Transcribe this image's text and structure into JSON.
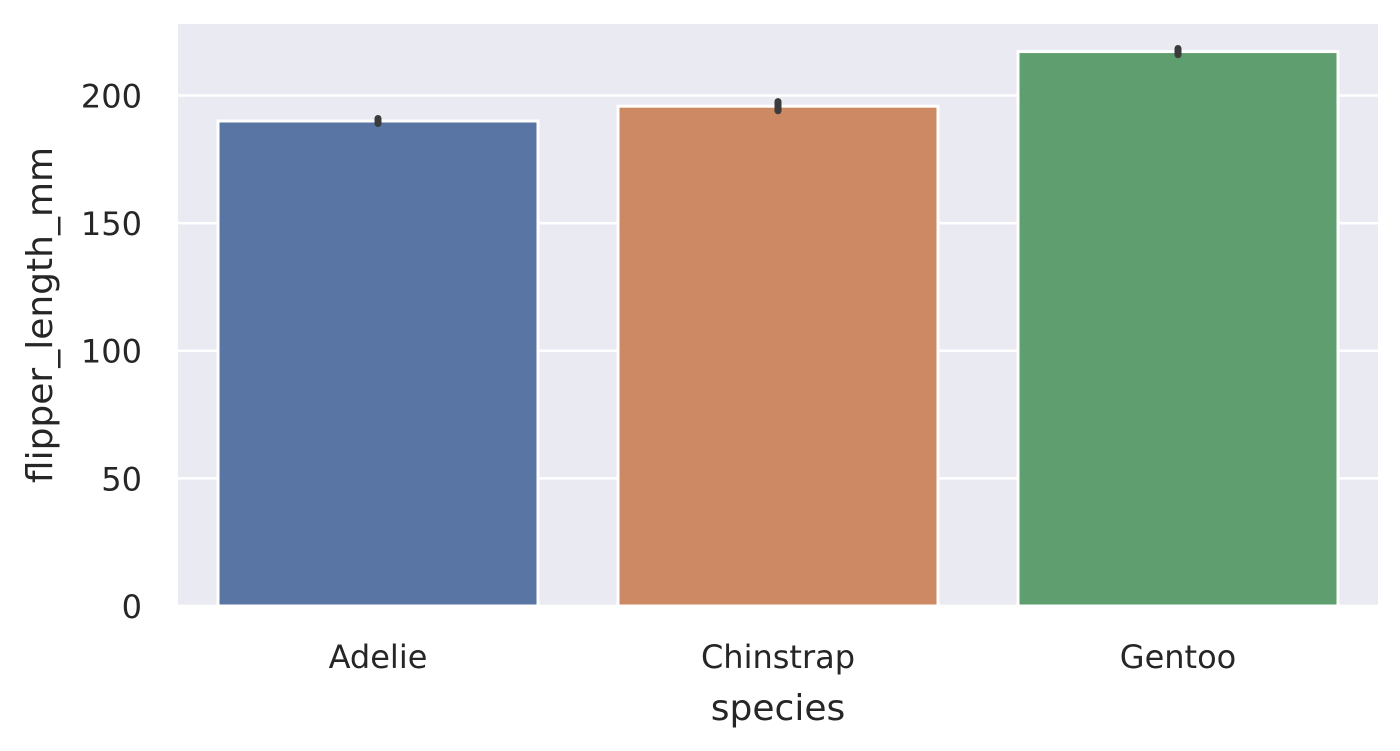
{
  "chart_data": {
    "type": "bar",
    "categories": [
      "Adelie",
      "Chinstrap",
      "Gentoo"
    ],
    "values": [
      190.0,
      195.8,
      217.2
    ],
    "errors": [
      [
        189.0,
        191.0
      ],
      [
        194.0,
        197.6
      ],
      [
        216.0,
        218.4
      ]
    ],
    "colors": [
      "#5875a4",
      "#cc8963",
      "#5f9e6e"
    ],
    "xlabel": "species",
    "ylabel": "flipper_length_mm",
    "ylim": [
      0,
      228
    ],
    "yticks": [
      0,
      50,
      100,
      150,
      200
    ],
    "grid": true,
    "background": "#eaeaf2",
    "grid_color": "#ffffff",
    "errorbar_color": "#3b3b3b"
  }
}
